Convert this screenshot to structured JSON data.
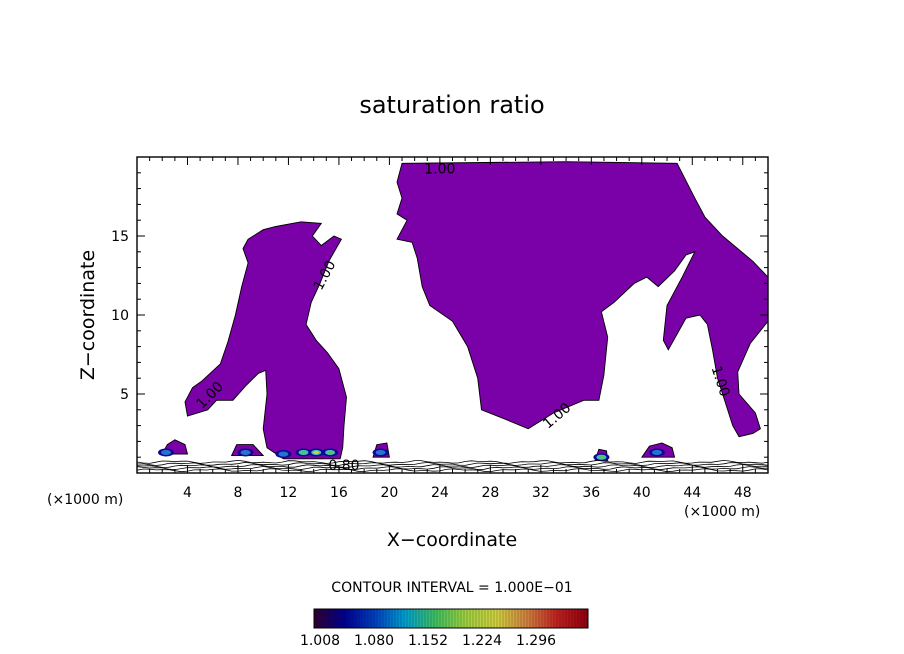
{
  "chart_data": {
    "type": "heatmap",
    "title": "saturation ratio",
    "xlabel": "X−coordinate",
    "ylabel": "Z−coordinate",
    "x_unit_label": "(×1000 m)",
    "x_unit_label_right": "(×1000 m)",
    "xlim": [
      0,
      50
    ],
    "ylim": [
      0,
      20
    ],
    "x_ticks": [
      4,
      8,
      12,
      16,
      20,
      24,
      28,
      32,
      36,
      40,
      44,
      48
    ],
    "y_ticks": [
      5,
      10,
      15
    ],
    "contour_interval_text": "CONTOUR INTERVAL = 1.000E−01",
    "contour_labels": [
      {
        "text": "1.00",
        "x": 24.0,
        "y": 19.2,
        "angle": 0
      },
      {
        "text": "1.00",
        "x": 14.9,
        "y": 12.5,
        "angle": -62
      },
      {
        "text": "1.00",
        "x": 5.8,
        "y": 4.9,
        "angle": -45
      },
      {
        "text": "1.00",
        "x": 33.3,
        "y": 3.6,
        "angle": -40
      },
      {
        "text": "1.00",
        "x": 46.2,
        "y": 5.8,
        "angle": 72
      },
      {
        "text": "0.80",
        "x": 16.4,
        "y": 0.45,
        "angle": 0
      }
    ],
    "filled_regions": [
      {
        "level": 1.008,
        "color": "#7a00a8",
        "points": [
          [
            21.0,
            19.6
          ],
          [
            34.0,
            19.7
          ],
          [
            42.8,
            19.6
          ],
          [
            44.2,
            17.4
          ],
          [
            45.0,
            16.2
          ],
          [
            46.4,
            15.0
          ],
          [
            47.6,
            14.2
          ],
          [
            48.8,
            13.4
          ],
          [
            50.0,
            12.4
          ],
          [
            50.0,
            9.6
          ],
          [
            48.6,
            8.2
          ],
          [
            47.6,
            6.4
          ],
          [
            47.7,
            5.0
          ],
          [
            49.0,
            3.8
          ],
          [
            49.4,
            2.8
          ],
          [
            48.8,
            2.5
          ],
          [
            47.7,
            2.3
          ],
          [
            47.2,
            3.0
          ],
          [
            46.6,
            4.5
          ],
          [
            46.0,
            6.0
          ],
          [
            45.6,
            7.8
          ],
          [
            45.2,
            9.4
          ],
          [
            44.6,
            10.0
          ],
          [
            43.5,
            9.8
          ],
          [
            42.1,
            7.8
          ],
          [
            41.7,
            8.4
          ],
          [
            42.0,
            10.6
          ],
          [
            43.2,
            12.4
          ],
          [
            44.2,
            14.0
          ],
          [
            43.5,
            13.8
          ],
          [
            42.6,
            12.8
          ],
          [
            41.3,
            11.8
          ],
          [
            40.4,
            12.4
          ],
          [
            39.4,
            12.0
          ],
          [
            37.8,
            10.8
          ],
          [
            36.8,
            10.2
          ],
          [
            37.3,
            8.6
          ],
          [
            37.0,
            6.2
          ],
          [
            36.6,
            4.6
          ],
          [
            35.4,
            4.6
          ],
          [
            33.0,
            3.8
          ],
          [
            31.0,
            2.8
          ],
          [
            29.2,
            3.4
          ],
          [
            27.3,
            4.0
          ],
          [
            27.0,
            6.0
          ],
          [
            26.2,
            8.0
          ],
          [
            25.0,
            9.6
          ],
          [
            23.2,
            10.6
          ],
          [
            22.6,
            11.8
          ],
          [
            22.2,
            13.6
          ],
          [
            21.8,
            14.6
          ],
          [
            20.6,
            14.8
          ],
          [
            21.4,
            16.0
          ],
          [
            20.6,
            16.4
          ],
          [
            21.0,
            17.4
          ],
          [
            20.6,
            18.4
          ]
        ]
      },
      {
        "level": 1.008,
        "color": "#7a00a8",
        "points": [
          [
            8.8,
            14.8
          ],
          [
            10.0,
            15.4
          ],
          [
            11.0,
            15.6
          ],
          [
            13.0,
            15.9
          ],
          [
            14.6,
            15.8
          ],
          [
            13.9,
            15.0
          ],
          [
            14.6,
            14.4
          ],
          [
            15.6,
            15.0
          ],
          [
            16.2,
            14.8
          ],
          [
            15.2,
            13.4
          ],
          [
            14.5,
            12.0
          ],
          [
            13.8,
            10.8
          ],
          [
            13.4,
            9.4
          ],
          [
            14.2,
            8.4
          ],
          [
            15.1,
            7.6
          ],
          [
            16.0,
            6.6
          ],
          [
            16.6,
            4.8
          ],
          [
            16.4,
            3.0
          ],
          [
            16.3,
            1.6
          ],
          [
            16.1,
            0.9
          ],
          [
            11.6,
            0.9
          ],
          [
            10.3,
            1.6
          ],
          [
            10.0,
            2.8
          ],
          [
            10.3,
            5.0
          ],
          [
            10.2,
            6.5
          ],
          [
            9.6,
            6.3
          ],
          [
            8.6,
            5.5
          ],
          [
            7.6,
            4.6
          ],
          [
            6.3,
            4.6
          ],
          [
            5.6,
            4.0
          ],
          [
            4.0,
            3.6
          ],
          [
            3.8,
            4.5
          ],
          [
            4.4,
            5.4
          ],
          [
            5.1,
            5.8
          ],
          [
            6.6,
            6.9
          ],
          [
            7.2,
            8.3
          ],
          [
            7.8,
            10.0
          ],
          [
            8.3,
            11.8
          ],
          [
            8.8,
            13.3
          ],
          [
            8.4,
            14.2
          ]
        ]
      },
      {
        "level": 1.008,
        "color": "#7a00a8",
        "points": [
          [
            2.0,
            1.2
          ],
          [
            2.4,
            1.8
          ],
          [
            3.0,
            2.1
          ],
          [
            3.8,
            1.8
          ],
          [
            4.0,
            1.2
          ]
        ]
      },
      {
        "level": 1.008,
        "color": "#7a00a8",
        "points": [
          [
            7.5,
            1.1
          ],
          [
            7.9,
            1.8
          ],
          [
            9.2,
            1.8
          ],
          [
            10.0,
            1.1
          ]
        ]
      },
      {
        "level": 1.008,
        "color": "#7a00a8",
        "points": [
          [
            18.7,
            1.0
          ],
          [
            19.0,
            1.8
          ],
          [
            19.8,
            1.9
          ],
          [
            20.0,
            1.0
          ]
        ]
      },
      {
        "level": 1.008,
        "color": "#7a00a8",
        "points": [
          [
            40.0,
            1.0
          ],
          [
            40.6,
            1.7
          ],
          [
            41.6,
            1.9
          ],
          [
            42.4,
            1.6
          ],
          [
            42.6,
            1.0
          ]
        ]
      },
      {
        "level": 1.008,
        "color": "#7a00a8",
        "points": [
          [
            36.3,
            0.8
          ],
          [
            36.6,
            1.5
          ],
          [
            37.2,
            1.4
          ],
          [
            37.3,
            0.8
          ]
        ]
      }
    ],
    "hotspots": [
      {
        "x": 2.3,
        "y": 1.3,
        "level": 1.08
      },
      {
        "x": 8.6,
        "y": 1.3,
        "level": 1.08
      },
      {
        "x": 11.6,
        "y": 1.2,
        "level": 1.08
      },
      {
        "x": 13.2,
        "y": 1.3,
        "level": 1.152
      },
      {
        "x": 14.2,
        "y": 1.3,
        "level": 1.224
      },
      {
        "x": 15.3,
        "y": 1.3,
        "level": 1.152
      },
      {
        "x": 19.3,
        "y": 1.3,
        "level": 1.08
      },
      {
        "x": 36.8,
        "y": 1.0,
        "level": 1.152
      },
      {
        "x": 41.2,
        "y": 1.3,
        "level": 1.08
      }
    ],
    "colorbar": {
      "ticks": [
        "1.008",
        "1.080",
        "1.152",
        "1.224",
        "1.296"
      ],
      "colors": [
        "#300030",
        "#000090",
        "#0040c0",
        "#00a0d0",
        "#40c060",
        "#a0d040",
        "#d0d040",
        "#d08040",
        "#c02020",
        "#900010"
      ]
    }
  }
}
